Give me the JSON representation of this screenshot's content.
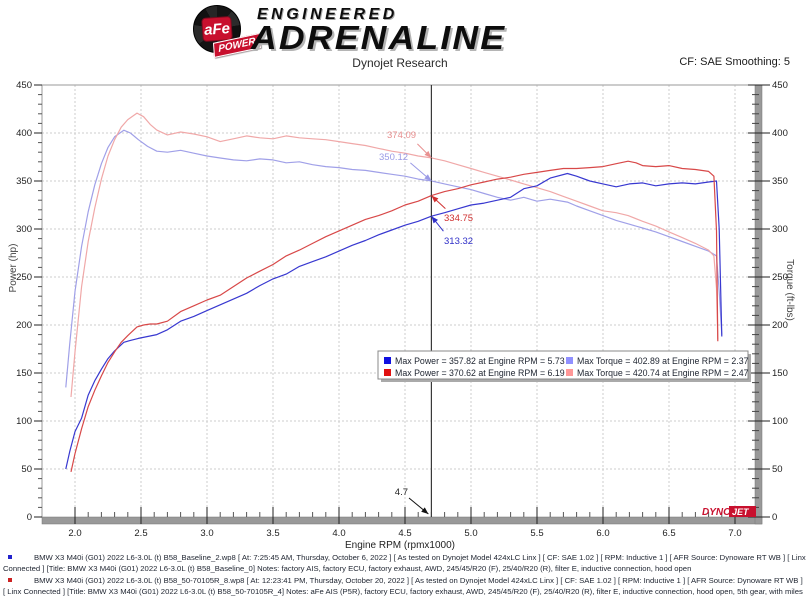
{
  "header": {
    "badge_afe": "aFe",
    "badge_power": "POWER",
    "engineered": "ENGINEERED",
    "adrenaline": "ADRENALINE",
    "title": "Dynojet Research",
    "smoothing": "CF: SAE Smoothing: 5"
  },
  "colors": {
    "baseline_power": "#3838d0",
    "modified_power": "#d84848",
    "baseline_torque": "#a0a0e8",
    "modified_torque": "#f0a8a8",
    "legend_blue": "#1010e0",
    "legend_red": "#e01010",
    "legend_lightblue": "#9090ff",
    "legend_lightred": "#ff9898",
    "grid": "#cdcdcd",
    "axis_bar": "#999999",
    "cursor": "#3a3a3a",
    "brand_red": "#c8102e"
  },
  "watermark": {
    "dyno": "DYNO",
    "jet": "JET"
  },
  "chart_data": {
    "type": "line",
    "title": "Dynojet Research",
    "xlabel": "Engine RPM (rpmx1000)",
    "ylabel_left": "Power (hp)",
    "ylabel_right": "Torque (ft-lbs)",
    "x_axis": {
      "min": 2.0,
      "max": 7.0,
      "step": 0.5,
      "minor": 0.1
    },
    "y_axis": {
      "min": 0,
      "max": 450,
      "step": 50,
      "minor": 10
    },
    "grid": true,
    "cursor": {
      "rpm": 4.7,
      "label": "4.7"
    },
    "peaks": {
      "baseline": {
        "max_power": 357.82,
        "max_power_rpm": 5.73,
        "max_torque": 402.89,
        "max_torque_rpm": 2.37
      },
      "modified": {
        "max_power": 370.62,
        "max_power_rpm": 6.19,
        "max_torque": 420.74,
        "max_torque_rpm": 2.47
      }
    },
    "annotations": [
      {
        "label": "374.09",
        "series": "modified_torque",
        "color": "#e89090"
      },
      {
        "label": "350.12",
        "series": "baseline_torque",
        "color": "#9a9ae6"
      },
      {
        "label": "334.75",
        "series": "modified_power",
        "color": "#d03030"
      },
      {
        "label": "313.32",
        "series": "baseline_power",
        "color": "#3030c8"
      }
    ],
    "series": [
      {
        "name": "baseline_torque",
        "axis": "right",
        "points": [
          [
            1.93,
            135
          ],
          [
            1.96,
            180
          ],
          [
            2.0,
            235
          ],
          [
            2.05,
            282
          ],
          [
            2.1,
            318
          ],
          [
            2.15,
            346
          ],
          [
            2.2,
            368
          ],
          [
            2.25,
            385
          ],
          [
            2.3,
            396
          ],
          [
            2.37,
            402.89
          ],
          [
            2.42,
            400
          ],
          [
            2.48,
            393
          ],
          [
            2.55,
            386
          ],
          [
            2.62,
            381
          ],
          [
            2.7,
            380
          ],
          [
            2.8,
            382
          ],
          [
            2.9,
            379
          ],
          [
            3.0,
            376
          ],
          [
            3.1,
            374
          ],
          [
            3.2,
            372
          ],
          [
            3.3,
            371
          ],
          [
            3.4,
            373
          ],
          [
            3.5,
            372
          ],
          [
            3.6,
            369
          ],
          [
            3.7,
            370
          ],
          [
            3.8,
            367
          ],
          [
            3.9,
            365
          ],
          [
            4.0,
            364
          ],
          [
            4.1,
            362
          ],
          [
            4.2,
            361
          ],
          [
            4.3,
            359
          ],
          [
            4.4,
            357
          ],
          [
            4.5,
            355
          ],
          [
            4.6,
            352
          ],
          [
            4.7,
            350.12
          ],
          [
            4.8,
            347
          ],
          [
            4.9,
            344
          ],
          [
            5.0,
            341
          ],
          [
            5.1,
            337
          ],
          [
            5.2,
            333
          ],
          [
            5.3,
            330
          ],
          [
            5.4,
            333
          ],
          [
            5.5,
            329
          ],
          [
            5.6,
            331
          ],
          [
            5.73,
            328
          ],
          [
            5.8,
            324
          ],
          [
            5.9,
            319
          ],
          [
            6.0,
            314
          ],
          [
            6.1,
            309
          ],
          [
            6.2,
            305
          ],
          [
            6.3,
            301
          ],
          [
            6.4,
            297
          ],
          [
            6.5,
            292
          ],
          [
            6.6,
            287
          ],
          [
            6.7,
            282
          ],
          [
            6.8,
            277
          ],
          [
            6.86,
            272
          ],
          [
            6.88,
            235
          ],
          [
            6.9,
            190
          ]
        ]
      },
      {
        "name": "modified_torque",
        "axis": "right",
        "points": [
          [
            1.97,
            125
          ],
          [
            2.0,
            172
          ],
          [
            2.05,
            240
          ],
          [
            2.1,
            287
          ],
          [
            2.15,
            322
          ],
          [
            2.2,
            352
          ],
          [
            2.25,
            376
          ],
          [
            2.3,
            393
          ],
          [
            2.35,
            406
          ],
          [
            2.4,
            414
          ],
          [
            2.47,
            420.74
          ],
          [
            2.52,
            417
          ],
          [
            2.57,
            409
          ],
          [
            2.62,
            403
          ],
          [
            2.7,
            398
          ],
          [
            2.8,
            401
          ],
          [
            2.9,
            399
          ],
          [
            3.0,
            396
          ],
          [
            3.1,
            391
          ],
          [
            3.2,
            394
          ],
          [
            3.3,
            397
          ],
          [
            3.4,
            395
          ],
          [
            3.5,
            394
          ],
          [
            3.6,
            397
          ],
          [
            3.7,
            395
          ],
          [
            3.8,
            394
          ],
          [
            3.9,
            393
          ],
          [
            4.0,
            391
          ],
          [
            4.1,
            389
          ],
          [
            4.2,
            387
          ],
          [
            4.3,
            384
          ],
          [
            4.4,
            381
          ],
          [
            4.5,
            379
          ],
          [
            4.6,
            376
          ],
          [
            4.7,
            374.09
          ],
          [
            4.8,
            371
          ],
          [
            4.9,
            367
          ],
          [
            5.0,
            363
          ],
          [
            5.1,
            359
          ],
          [
            5.2,
            355
          ],
          [
            5.3,
            351
          ],
          [
            5.4,
            347
          ],
          [
            5.5,
            343
          ],
          [
            5.6,
            339
          ],
          [
            5.7,
            334
          ],
          [
            5.8,
            329
          ],
          [
            5.9,
            324
          ],
          [
            6.0,
            319
          ],
          [
            6.1,
            317
          ],
          [
            6.19,
            314
          ],
          [
            6.3,
            308
          ],
          [
            6.4,
            303
          ],
          [
            6.5,
            297
          ],
          [
            6.6,
            291
          ],
          [
            6.7,
            285
          ],
          [
            6.8,
            278
          ],
          [
            6.84,
            272
          ],
          [
            6.86,
            238
          ],
          [
            6.87,
            185
          ]
        ]
      },
      {
        "name": "baseline_power",
        "axis": "left",
        "points": [
          [
            1.93,
            50
          ],
          [
            1.96,
            68
          ],
          [
            2.0,
            89
          ],
          [
            2.05,
            103
          ],
          [
            2.1,
            127
          ],
          [
            2.15,
            142
          ],
          [
            2.2,
            154
          ],
          [
            2.25,
            165
          ],
          [
            2.3,
            173
          ],
          [
            2.37,
            182
          ],
          [
            2.42,
            184
          ],
          [
            2.48,
            186
          ],
          [
            2.55,
            188
          ],
          [
            2.62,
            190
          ],
          [
            2.7,
            195
          ],
          [
            2.8,
            204
          ],
          [
            2.9,
            209
          ],
          [
            3.0,
            215
          ],
          [
            3.1,
            221
          ],
          [
            3.2,
            227
          ],
          [
            3.3,
            233
          ],
          [
            3.4,
            241
          ],
          [
            3.5,
            248
          ],
          [
            3.6,
            253
          ],
          [
            3.7,
            261
          ],
          [
            3.8,
            266
          ],
          [
            3.9,
            271
          ],
          [
            4.0,
            277
          ],
          [
            4.1,
            283
          ],
          [
            4.2,
            288
          ],
          [
            4.3,
            294
          ],
          [
            4.4,
            299
          ],
          [
            4.5,
            304
          ],
          [
            4.6,
            308
          ],
          [
            4.7,
            313.32
          ],
          [
            4.8,
            317
          ],
          [
            4.9,
            321
          ],
          [
            5.0,
            325
          ],
          [
            5.1,
            327
          ],
          [
            5.2,
            330
          ],
          [
            5.3,
            333
          ],
          [
            5.4,
            342
          ],
          [
            5.5,
            345
          ],
          [
            5.6,
            353
          ],
          [
            5.73,
            357.82
          ],
          [
            5.8,
            355
          ],
          [
            5.9,
            350
          ],
          [
            6.0,
            347
          ],
          [
            6.1,
            344
          ],
          [
            6.2,
            347
          ],
          [
            6.3,
            348
          ],
          [
            6.4,
            345
          ],
          [
            6.5,
            347
          ],
          [
            6.6,
            348
          ],
          [
            6.7,
            347
          ],
          [
            6.8,
            349
          ],
          [
            6.86,
            350
          ],
          [
            6.88,
            300
          ],
          [
            6.9,
            188
          ]
        ]
      },
      {
        "name": "modified_power",
        "axis": "left",
        "points": [
          [
            1.97,
            47
          ],
          [
            2.0,
            66
          ],
          [
            2.05,
            92
          ],
          [
            2.1,
            115
          ],
          [
            2.15,
            132
          ],
          [
            2.2,
            147
          ],
          [
            2.25,
            161
          ],
          [
            2.3,
            172
          ],
          [
            2.35,
            182
          ],
          [
            2.4,
            189
          ],
          [
            2.47,
            198
          ],
          [
            2.52,
            200
          ],
          [
            2.57,
            201
          ],
          [
            2.62,
            201
          ],
          [
            2.7,
            204
          ],
          [
            2.8,
            214
          ],
          [
            2.9,
            220
          ],
          [
            3.0,
            226
          ],
          [
            3.1,
            231
          ],
          [
            3.2,
            240
          ],
          [
            3.3,
            249
          ],
          [
            3.4,
            256
          ],
          [
            3.5,
            263
          ],
          [
            3.6,
            272
          ],
          [
            3.7,
            278
          ],
          [
            3.8,
            285
          ],
          [
            3.9,
            292
          ],
          [
            4.0,
            298
          ],
          [
            4.1,
            304
          ],
          [
            4.2,
            310
          ],
          [
            4.3,
            314
          ],
          [
            4.4,
            319
          ],
          [
            4.5,
            325
          ],
          [
            4.6,
            329
          ],
          [
            4.7,
            334.75
          ],
          [
            4.8,
            339
          ],
          [
            4.9,
            342
          ],
          [
            5.0,
            346
          ],
          [
            5.1,
            349
          ],
          [
            5.2,
            352
          ],
          [
            5.3,
            354
          ],
          [
            5.4,
            357
          ],
          [
            5.5,
            359
          ],
          [
            5.6,
            361
          ],
          [
            5.7,
            363
          ],
          [
            5.8,
            363
          ],
          [
            5.9,
            364
          ],
          [
            6.0,
            365
          ],
          [
            6.1,
            368
          ],
          [
            6.19,
            370.62
          ],
          [
            6.25,
            369
          ],
          [
            6.3,
            366
          ],
          [
            6.4,
            365
          ],
          [
            6.5,
            366
          ],
          [
            6.6,
            363
          ],
          [
            6.7,
            362
          ],
          [
            6.8,
            360
          ],
          [
            6.84,
            355
          ],
          [
            6.86,
            298
          ],
          [
            6.87,
            183
          ]
        ]
      }
    ]
  },
  "legend": {
    "entries": [
      {
        "marker_color": "#1010e0",
        "text": "Max Power = 357.82 at Engine RPM = 5.73",
        "col": 0,
        "row": 0
      },
      {
        "marker_color": "#e01010",
        "text": "Max Power = 370.62 at Engine RPM = 6.19",
        "col": 0,
        "row": 1
      },
      {
        "marker_color": "#9090ff",
        "text": "Max Torque = 402.89 at Engine RPM = 2.37",
        "col": 1,
        "row": 0
      },
      {
        "marker_color": "#ff9898",
        "text": "Max Torque = 420.74 at Engine RPM = 2.47",
        "col": 1,
        "row": 1
      }
    ]
  },
  "footer": {
    "bullet1_color": "#2222cc",
    "bullet2_color": "#cc2222",
    "lines": [
      "BMW X3 M40i (G01) 2022 L6-3.0L (t) B58_Baseline_2.wp8 [ At: 7:25:45 AM, Thursday, October 6, 2022 ] [ As tested on Dynojet Model 424xLC Linx ] [ CF: SAE 1.02 ] [ RPM: Inductive 1 ] [ AFR Source: Dynoware RT WB ] [ Linx",
      "Connected ] [Title: BMW X3 M40i (G01) 2022 L6-3.0L (t) B58_Baseline_0]  Notes: factory AIS, factory ECU, factory exhaust, AWD, 245/45/R20 (F), 25/40/R20 (R), filter E, inductive connection, hood open",
      "BMW X3 M40i (G01) 2022 L6-3.0L (t) B58_50-70105R_8.wp8 [ At: 12:23:41 PM, Thursday, October 20, 2022 ] [ As tested on Dynojet Model 424xLC Linx ] [ CF: SAE 1.02 ] [ RPM: Inductive 1 ] [ AFR Source: Dynoware RT WB ]",
      "[ Linx Connected ] [Title: BMW X3 M40i (G01) 2022 L6-3.0L (t) B58_50-70105R_4]  Notes: aFe AIS (P5R), factory ECU, factory exhaust, AWD, 245/45/R20 (F), 25/40/R20 (R), filter E, inductive connection, hood open, 5th gear, with miles"
    ]
  }
}
